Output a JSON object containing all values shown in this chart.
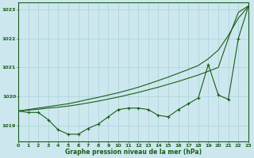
{
  "title": "Graphe pression niveau de la mer (hPa)",
  "bg_color": "#cce8ee",
  "line_color": "#1a5c1a",
  "grid_color": "#aad0d8",
  "xlim": [
    0,
    23
  ],
  "ylim": [
    1018.45,
    1023.25
  ],
  "yticks": [
    1019,
    1020,
    1021,
    1022,
    1023
  ],
  "xticks": [
    0,
    1,
    2,
    3,
    4,
    5,
    6,
    7,
    8,
    9,
    10,
    11,
    12,
    13,
    14,
    15,
    16,
    17,
    18,
    19,
    20,
    21,
    22,
    23
  ],
  "hours": [
    0,
    1,
    2,
    3,
    4,
    5,
    6,
    7,
    8,
    9,
    10,
    11,
    12,
    13,
    14,
    15,
    16,
    17,
    18,
    19,
    20,
    21,
    22,
    23
  ],
  "pressure": [
    1019.5,
    1019.45,
    1019.45,
    1019.2,
    1018.85,
    1018.7,
    1018.7,
    1018.9,
    1019.05,
    1019.3,
    1019.55,
    1019.6,
    1019.6,
    1019.55,
    1019.35,
    1019.3,
    1019.55,
    1019.75,
    1019.95,
    1021.1,
    1020.05,
    1019.9,
    1022.0,
    1023.1
  ],
  "line1": [
    1019.5,
    1019.55,
    1019.6,
    1019.65,
    1019.7,
    1019.75,
    1019.82,
    1019.9,
    1019.97,
    1020.05,
    1020.13,
    1020.22,
    1020.32,
    1020.43,
    1020.55,
    1020.67,
    1020.8,
    1020.93,
    1021.07,
    1021.3,
    1021.6,
    1022.1,
    1022.7,
    1023.1
  ],
  "line2": [
    1019.5,
    1019.53,
    1019.56,
    1019.6,
    1019.63,
    1019.67,
    1019.72,
    1019.78,
    1019.84,
    1019.91,
    1019.98,
    1020.06,
    1020.14,
    1020.23,
    1020.32,
    1020.42,
    1020.52,
    1020.63,
    1020.74,
    1020.87,
    1021.0,
    1022.0,
    1022.9,
    1023.12
  ]
}
